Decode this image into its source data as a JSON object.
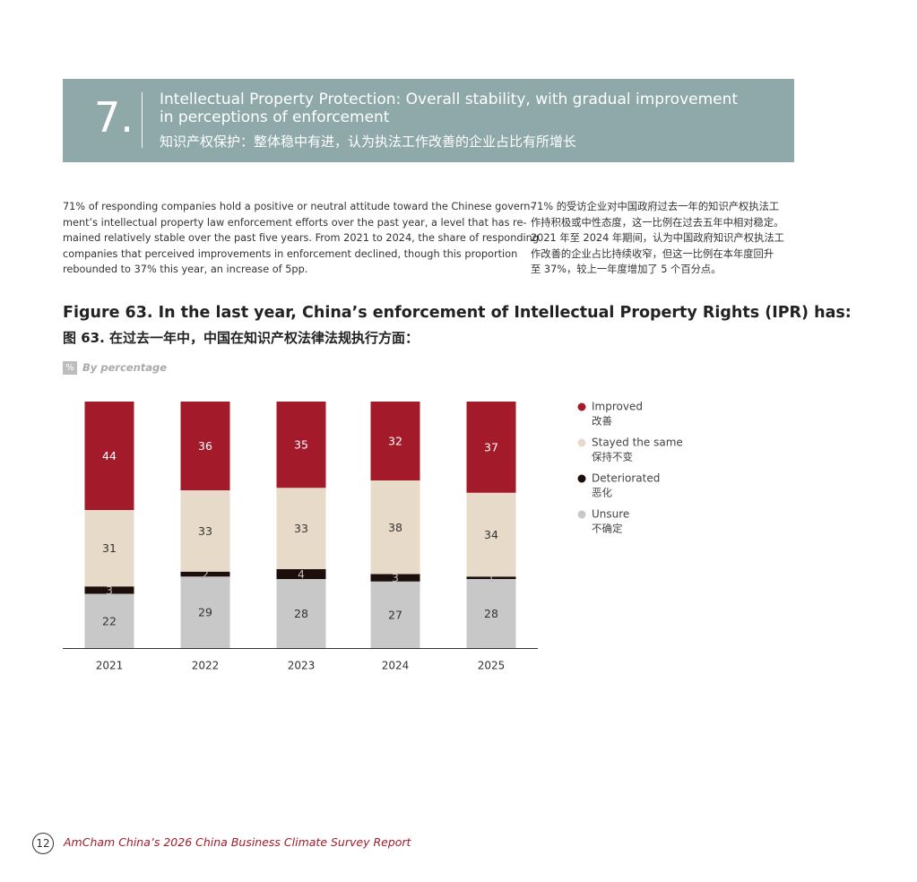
{
  "header": {
    "number": "7.",
    "title_en": "Intellectual Property Protection: Overall stability,  with gradual improvement in perceptions of enforcement",
    "title_zh": "知识产权保护：整体稳中有进，认为执法工作改善的企业占比有所增长"
  },
  "body": {
    "en_lines": [
      "71% of responding companies hold a positive or neutral attitude toward the Chinese govern-",
      "ment’s intellectual property law enforcement efforts over the past year, a level that has re-",
      "mained relatively stable over the past five years. From 2021 to 2024, the share of responding",
      "companies that perceived improvements in enforcement declined, though this proportion",
      "rebounded to 37% this year, an increase of 5pp."
    ],
    "zh_lines": [
      "71% 的受访企业对中国政府过去一年的知识产权执法工",
      "作持积极或中性态度，这一比例在过去五年中相对稳定。",
      "2021 年至 2024 年期间，认为中国政府知识产权执法工",
      "作改善的企业占比持续收窄，但这一比例在本年度回升",
      "至 37%，较上一年度增加了 5 个百分点。"
    ]
  },
  "figure": {
    "title_en": "Figure 63. In the last year, China’s enforcement of Intellectual Property Rights (IPR) has:",
    "title_zh": "图 63. 在过去一年中，中国在知识产权法律法规执行方面：",
    "unit_badge": "%",
    "unit_note": "By percentage"
  },
  "chart_data": {
    "type": "stacked_bar",
    "categories": [
      "2021",
      "2022",
      "2023",
      "2024",
      "2025"
    ],
    "series": [
      {
        "name": "Improved",
        "name_zh": "改善",
        "color": "#a31b2b",
        "values": [
          44,
          36,
          35,
          32,
          37
        ]
      },
      {
        "name": "Stayed the same",
        "name_zh": "保持不变",
        "color": "#e8dac9",
        "values": [
          31,
          33,
          33,
          38,
          34
        ]
      },
      {
        "name": "Deteriorated",
        "name_zh": "恶化",
        "color": "#1c0f0b",
        "values": [
          3,
          2,
          4,
          3,
          1
        ]
      },
      {
        "name": "Unsure",
        "name_zh": "不确定",
        "color": "#c8c8c8",
        "values": [
          22,
          29,
          28,
          27,
          28
        ]
      }
    ],
    "legend": "right"
  },
  "footer": {
    "page": "12",
    "text": "AmCham China’s 2026 China Business Climate Survey Report"
  }
}
